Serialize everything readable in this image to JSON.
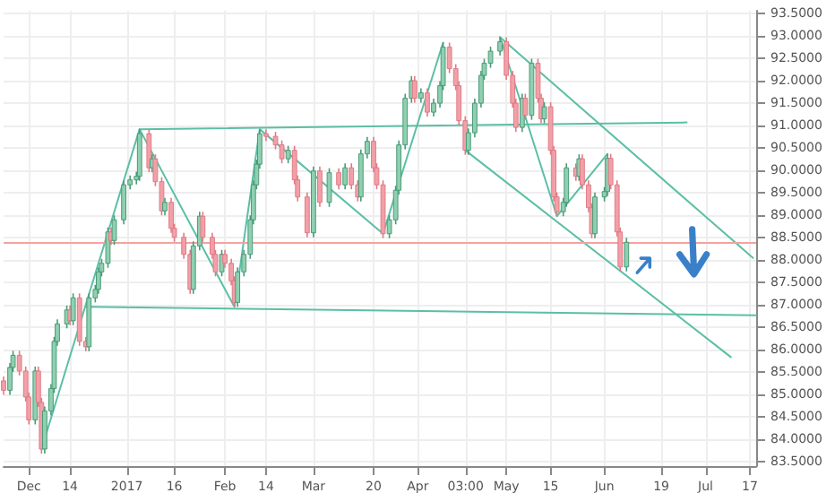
{
  "chart_data": {
    "type": "candlestick",
    "x": [
      "2016-11-23",
      "2016-11-25",
      "2016-11-26",
      "2016-11-28",
      "2016-11-30",
      "2016-12-01",
      "2016-12-03",
      "2016-12-04",
      "2016-12-05",
      "2016-12-06",
      "2016-12-08",
      "2016-12-09",
      "2016-12-10",
      "2016-12-13",
      "2016-12-14",
      "2016-12-15",
      "2016-12-17",
      "2016-12-19",
      "2016-12-20",
      "2016-12-22",
      "2016-12-23",
      "2016-12-24",
      "2016-12-26",
      "2016-12-27",
      "2016-12-28",
      "2016-12-31",
      "2017-01-02",
      "2017-01-04",
      "2017-01-05",
      "2017-01-08",
      "2017-01-09",
      "2017-01-10",
      "2017-01-12",
      "2017-01-13",
      "2017-01-15",
      "2017-01-16",
      "2017-01-19",
      "2017-01-21",
      "2017-01-22",
      "2017-01-24",
      "2017-01-25",
      "2017-01-28",
      "2017-01-29",
      "2017-01-31",
      "2017-02-01",
      "2017-02-03",
      "2017-02-04",
      "2017-02-05",
      "2017-02-07",
      "2017-02-09",
      "2017-02-10",
      "2017-02-11",
      "2017-02-12",
      "2017-02-14",
      "2017-02-17",
      "2017-02-19",
      "2017-02-21",
      "2017-02-23",
      "2017-02-24",
      "2017-02-27",
      "2017-03-01",
      "2017-03-03",
      "2017-03-06",
      "2017-03-09",
      "2017-03-11",
      "2017-03-13",
      "2017-03-15",
      "2017-03-16",
      "2017-03-18",
      "2017-03-20",
      "2017-03-21",
      "2017-03-23",
      "2017-03-25",
      "2017-03-27",
      "2017-03-28",
      "2017-03-30",
      "2017-04-01",
      "2017-04-02",
      "2017-04-04",
      "2017-04-06",
      "2017-04-08",
      "2017-04-10",
      "2017-04-11",
      "2017-04-13",
      "2017-04-15",
      "2017-04-16",
      "2017-04-18",
      "2017-04-19",
      "2017-04-21",
      "2017-04-23",
      "2017-04-24",
      "2017-04-26",
      "2017-04-29",
      "2017-05-01",
      "2017-05-03",
      "2017-05-04",
      "2017-05-06",
      "2017-05-07",
      "2017-05-09",
      "2017-05-11",
      "2017-05-12",
      "2017-05-13",
      "2017-05-15",
      "2017-05-16",
      "2017-05-17",
      "2017-05-19",
      "2017-05-20",
      "2017-05-23",
      "2017-05-24",
      "2017-05-25",
      "2017-05-27",
      "2017-05-28",
      "2017-05-29",
      "2017-06-01",
      "2017-06-02",
      "2017-06-03",
      "2017-06-05",
      "2017-06-06",
      "2017-06-08"
    ],
    "ohlc": [
      [
        85.3,
        85.4,
        84.99,
        85.09
      ],
      [
        85.09,
        85.7,
        84.99,
        85.6
      ],
      [
        85.6,
        85.97,
        85.5,
        85.87
      ],
      [
        85.87,
        85.97,
        85.42,
        85.52
      ],
      [
        85.52,
        85.62,
        84.84,
        84.94
      ],
      [
        84.94,
        85.04,
        84.33,
        84.43
      ],
      [
        84.43,
        85.62,
        84.33,
        85.52
      ],
      [
        85.52,
        85.62,
        84.72,
        84.82
      ],
      [
        84.82,
        84.92,
        83.68,
        83.78
      ],
      [
        83.78,
        84.73,
        83.68,
        84.63
      ],
      [
        84.63,
        85.23,
        84.53,
        85.13
      ],
      [
        85.13,
        86.28,
        85.03,
        86.18
      ],
      [
        86.18,
        86.67,
        86.08,
        86.57
      ],
      [
        86.57,
        86.98,
        86.47,
        86.88
      ],
      [
        86.88,
        86.98,
        86.54,
        86.64
      ],
      [
        86.64,
        87.25,
        86.54,
        87.15
      ],
      [
        87.15,
        87.25,
        86.08,
        86.18
      ],
      [
        86.18,
        86.28,
        85.96,
        86.06
      ],
      [
        86.06,
        87.25,
        85.96,
        87.15
      ],
      [
        87.15,
        87.44,
        87.05,
        87.34
      ],
      [
        87.34,
        87.83,
        87.24,
        87.73
      ],
      [
        87.73,
        88.02,
        87.63,
        87.92
      ],
      [
        87.92,
        88.72,
        87.82,
        88.62
      ],
      [
        88.62,
        88.72,
        88.33,
        88.43
      ],
      [
        88.43,
        88.99,
        88.33,
        88.89
      ],
      [
        88.89,
        89.77,
        88.79,
        89.67
      ],
      [
        89.67,
        89.88,
        89.57,
        89.78
      ],
      [
        89.78,
        89.96,
        89.68,
        89.86
      ],
      [
        89.86,
        90.91,
        89.76,
        90.81
      ],
      [
        90.81,
        90.91,
        89.95,
        90.05
      ],
      [
        90.05,
        90.35,
        89.95,
        90.25
      ],
      [
        90.25,
        90.35,
        89.64,
        89.74
      ],
      [
        89.74,
        89.84,
        88.99,
        89.09
      ],
      [
        89.09,
        89.38,
        88.99,
        89.28
      ],
      [
        89.28,
        89.38,
        88.6,
        88.7
      ],
      [
        88.7,
        88.8,
        88.4,
        88.5
      ],
      [
        88.5,
        88.6,
        88.02,
        88.12
      ],
      [
        88.12,
        88.22,
        87.24,
        87.34
      ],
      [
        87.34,
        88.41,
        87.24,
        88.31
      ],
      [
        88.31,
        89.07,
        88.21,
        88.97
      ],
      [
        88.97,
        89.07,
        88.4,
        88.5
      ],
      [
        88.5,
        88.6,
        88.02,
        88.12
      ],
      [
        88.12,
        88.22,
        87.63,
        87.73
      ],
      [
        87.73,
        88.22,
        87.63,
        88.12
      ],
      [
        88.12,
        88.22,
        87.82,
        87.92
      ],
      [
        87.92,
        88.02,
        87.43,
        87.53
      ],
      [
        87.53,
        87.63,
        86.95,
        87.05
      ],
      [
        87.05,
        87.83,
        86.95,
        87.73
      ],
      [
        87.73,
        88.22,
        87.63,
        88.12
      ],
      [
        88.12,
        88.99,
        88.02,
        88.89
      ],
      [
        88.89,
        89.77,
        88.79,
        89.67
      ],
      [
        89.67,
        90.23,
        89.57,
        90.13
      ],
      [
        90.13,
        90.91,
        90.03,
        90.81
      ],
      [
        90.81,
        90.91,
        90.65,
        90.75
      ],
      [
        90.75,
        90.85,
        90.46,
        90.56
      ],
      [
        90.56,
        90.66,
        90.15,
        90.25
      ],
      [
        90.25,
        90.54,
        90.15,
        90.44
      ],
      [
        90.44,
        90.54,
        89.68,
        89.78
      ],
      [
        89.78,
        89.88,
        89.3,
        89.4
      ],
      [
        89.4,
        89.5,
        88.5,
        88.6
      ],
      [
        88.6,
        90.08,
        88.5,
        89.98
      ],
      [
        89.98,
        90.08,
        89.18,
        89.28
      ],
      [
        89.28,
        90.04,
        89.18,
        89.94
      ],
      [
        89.94,
        90.04,
        89.57,
        89.67
      ],
      [
        89.67,
        90.15,
        89.57,
        90.05
      ],
      [
        90.05,
        90.15,
        89.57,
        89.67
      ],
      [
        89.67,
        89.77,
        89.3,
        89.4
      ],
      [
        89.4,
        90.46,
        89.3,
        90.36
      ],
      [
        90.36,
        90.74,
        90.26,
        90.64
      ],
      [
        90.64,
        90.74,
        89.95,
        90.05
      ],
      [
        90.05,
        90.15,
        89.57,
        89.67
      ],
      [
        89.67,
        89.77,
        88.48,
        88.58
      ],
      [
        88.58,
        88.99,
        88.48,
        88.89
      ],
      [
        88.89,
        89.65,
        88.79,
        89.55
      ],
      [
        89.55,
        90.66,
        89.45,
        90.56
      ],
      [
        90.56,
        91.7,
        90.46,
        91.6
      ],
      [
        91.6,
        92.09,
        91.5,
        91.99
      ],
      [
        91.99,
        92.09,
        91.5,
        91.6
      ],
      [
        91.6,
        91.82,
        91.5,
        91.72
      ],
      [
        91.72,
        91.82,
        91.19,
        91.29
      ],
      [
        91.29,
        91.59,
        91.19,
        91.49
      ],
      [
        91.49,
        91.98,
        91.39,
        91.88
      ],
      [
        91.88,
        92.84,
        91.78,
        92.74
      ],
      [
        92.74,
        92.84,
        92.16,
        92.26
      ],
      [
        92.26,
        92.36,
        91.78,
        91.88
      ],
      [
        91.88,
        91.98,
        91.0,
        91.1
      ],
      [
        91.1,
        91.2,
        90.34,
        90.44
      ],
      [
        90.44,
        90.93,
        90.34,
        90.83
      ],
      [
        90.83,
        91.59,
        90.73,
        91.49
      ],
      [
        91.49,
        92.21,
        91.39,
        92.11
      ],
      [
        92.11,
        92.48,
        92.01,
        92.38
      ],
      [
        92.38,
        92.75,
        92.28,
        92.65
      ],
      [
        92.65,
        92.96,
        92.55,
        92.86
      ],
      [
        92.86,
        92.96,
        92.01,
        92.11
      ],
      [
        92.11,
        92.21,
        91.39,
        91.49
      ],
      [
        91.49,
        91.59,
        90.85,
        90.95
      ],
      [
        90.95,
        91.7,
        90.85,
        91.6
      ],
      [
        91.6,
        91.7,
        91.12,
        91.22
      ],
      [
        91.22,
        92.48,
        91.12,
        92.38
      ],
      [
        92.38,
        92.48,
        91.5,
        91.6
      ],
      [
        91.6,
        91.7,
        91.04,
        91.14
      ],
      [
        91.14,
        91.51,
        91.04,
        91.41
      ],
      [
        91.41,
        91.51,
        90.34,
        90.44
      ],
      [
        90.44,
        90.54,
        89.3,
        89.4
      ],
      [
        89.4,
        89.5,
        88.97,
        89.07
      ],
      [
        89.07,
        89.38,
        88.97,
        89.28
      ],
      [
        89.28,
        90.15,
        89.18,
        90.05
      ],
      [
        90.05,
        90.15,
        89.76,
        89.86
      ],
      [
        89.86,
        90.35,
        89.76,
        90.25
      ],
      [
        90.25,
        90.35,
        89.57,
        89.67
      ],
      [
        89.67,
        89.77,
        89.06,
        89.16
      ],
      [
        89.16,
        89.26,
        88.48,
        88.58
      ],
      [
        88.58,
        89.5,
        88.48,
        89.4
      ],
      [
        89.4,
        89.62,
        89.3,
        89.52
      ],
      [
        89.52,
        90.36,
        89.42,
        90.26
      ],
      [
        90.26,
        90.36,
        89.57,
        89.67
      ],
      [
        89.67,
        89.77,
        88.52,
        88.62
      ],
      [
        88.62,
        88.72,
        87.74,
        87.84
      ],
      [
        87.84,
        88.49,
        87.74,
        88.39
      ]
    ],
    "series": [
      {
        "type": "line",
        "color": "#5bbfa5",
        "x": [
          "2016-12-05",
          "2017-01-05",
          "2017-02-04",
          "2017-02-12",
          "2017-03-23",
          "2017-04-11"
        ],
        "values": [
          83.78,
          90.91,
          86.95,
          90.91,
          88.58,
          92.84
        ]
      },
      {
        "type": "line",
        "color": "#5bbfa5",
        "x": [
          "2017-01-05",
          "2017-06-27"
        ],
        "values": [
          90.91,
          91.06
        ]
      },
      {
        "type": "line",
        "color": "#5bbfa5",
        "x": [
          "2016-12-19",
          "2017-07-19"
        ],
        "values": [
          86.95,
          86.76
        ]
      },
      {
        "type": "line",
        "color": "#5bbfa5",
        "x": [
          "2017-04-29",
          "2017-07-18"
        ],
        "values": [
          92.96,
          88.04
        ]
      },
      {
        "type": "line",
        "color": "#5bbfa5",
        "x": [
          "2017-04-18",
          "2017-07-11"
        ],
        "values": [
          90.44,
          85.83
        ]
      },
      {
        "type": "line",
        "color": "#5bbfa5",
        "x": [
          "2017-04-29",
          "2017-05-17",
          "2017-06-02"
        ],
        "values": [
          92.96,
          88.97,
          90.36
        ]
      }
    ],
    "xlim": [
      "2016-11-23",
      "2017-07-19"
    ],
    "xticks": [
      {
        "value": "2016-12-01",
        "label": "Dec"
      },
      {
        "value": "2016-12-14",
        "label": "14"
      },
      {
        "value": "2017-01-01",
        "label": "2017"
      },
      {
        "value": "2017-01-16",
        "label": "16"
      },
      {
        "value": "2017-02-01",
        "label": "Feb"
      },
      {
        "value": "2017-02-14",
        "label": "14"
      },
      {
        "value": "2017-03-01",
        "label": "Mar"
      },
      {
        "value": "2017-03-20",
        "label": "20"
      },
      {
        "value": "2017-04-03",
        "label": "Apr"
      },
      {
        "value": "2017-04-18T03:00",
        "label": "03:00"
      },
      {
        "value": "2017-05-01",
        "label": "May"
      },
      {
        "value": "2017-05-15",
        "label": "15"
      },
      {
        "value": "2017-06-01",
        "label": "Jun"
      },
      {
        "value": "2017-06-19",
        "label": "19"
      },
      {
        "value": "2017-07-03",
        "label": "Jul"
      },
      {
        "value": "2017-07-17",
        "label": "17"
      }
    ],
    "ylim": [
      83.4,
      93.55
    ],
    "yticks": [
      {
        "value": 83.5,
        "label": "83.5000"
      },
      {
        "value": 84,
        "label": "84.0000"
      },
      {
        "value": 84.5,
        "label": "84.5000"
      },
      {
        "value": 85,
        "label": "85.0000"
      },
      {
        "value": 85.5,
        "label": "85.5000"
      },
      {
        "value": 86,
        "label": "86.0000"
      },
      {
        "value": 86.5,
        "label": "86.5000"
      },
      {
        "value": 87,
        "label": "87.0000"
      },
      {
        "value": 87.5,
        "label": "87.5000"
      },
      {
        "value": 88,
        "label": "88.0000"
      },
      {
        "value": 88.5,
        "label": "88.5000"
      },
      {
        "value": 89,
        "label": "89.0000"
      },
      {
        "value": 89.5,
        "label": "89.5000"
      },
      {
        "value": 90,
        "label": "90.0000"
      },
      {
        "value": 90.5,
        "label": "90.5000"
      },
      {
        "value": 91,
        "label": "91.0000"
      },
      {
        "value": 91.5,
        "label": "91.5000"
      },
      {
        "value": 92,
        "label": "92.0000"
      },
      {
        "value": 92.5,
        "label": "92.5000"
      },
      {
        "value": 93,
        "label": "93.0000"
      },
      {
        "value": 93.5,
        "label": "93.5000"
      }
    ],
    "ref_lines": [
      {
        "axis": "y",
        "value": 88.39,
        "color": "#f4a3a0"
      }
    ],
    "grid": true,
    "marker": "none"
  }
}
